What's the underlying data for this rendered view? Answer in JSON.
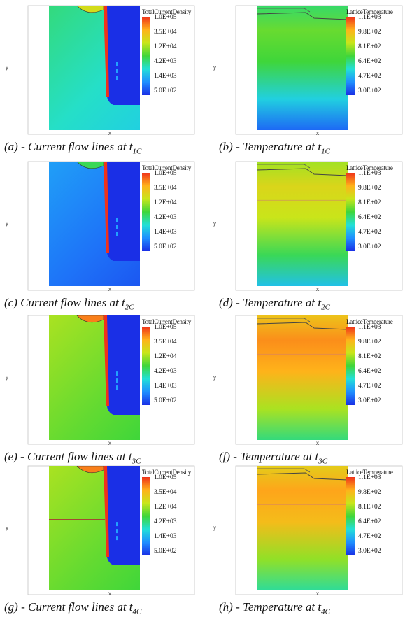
{
  "axis_labels": {
    "x": "x",
    "y": "y"
  },
  "legends": {
    "current": {
      "title": "TotalCurrentDensity",
      "ticks": [
        "1.0E+05",
        "3.5E+04",
        "1.2E+04",
        "4.2E+03",
        "1.4E+03",
        "5.0E+02"
      ]
    },
    "temperature": {
      "title": "LatticeTemperature",
      "ticks": [
        "1.1E+03",
        "9.8E+02",
        "8.1E+02",
        "6.4E+02",
        "4.7E+02",
        "3.0E+02"
      ]
    }
  },
  "panels": [
    {
      "id": "a",
      "kind": "current",
      "caption_main": "(a) - Current flow lines at t",
      "caption_sub": "1C",
      "bg_level": 0.35
    },
    {
      "id": "b",
      "kind": "temperature",
      "caption_main": "(b) - Temperature at t",
      "caption_sub": "1C",
      "level": 0.55
    },
    {
      "id": "c",
      "kind": "current",
      "caption_main": "(c) Current flow lines at t",
      "caption_sub": "2C",
      "bg_level": 0.12
    },
    {
      "id": "d",
      "kind": "temperature",
      "caption_main": "(d) - Temperature at t",
      "caption_sub": "2C",
      "level": 0.72
    },
    {
      "id": "e",
      "kind": "current",
      "caption_main": "(e) - Current flow lines at t",
      "caption_sub": "3C",
      "bg_level": 0.55
    },
    {
      "id": "f",
      "kind": "temperature",
      "caption_main": "(f) - Temperature at t",
      "caption_sub": "3C",
      "level": 0.88
    },
    {
      "id": "g",
      "kind": "current",
      "caption_main": "(g) - Current flow lines at t",
      "caption_sub": "4C",
      "bg_level": 0.55
    },
    {
      "id": "h",
      "kind": "temperature",
      "caption_main": "(h) - Temperature at t",
      "caption_sub": "4C",
      "level": 0.85
    }
  ],
  "colors": {
    "scale": [
      "#1a2fe6",
      "#1f8fff",
      "#22e0d8",
      "#3fd63a",
      "#c8e61a",
      "#ffb21a",
      "#f0321a"
    ]
  }
}
